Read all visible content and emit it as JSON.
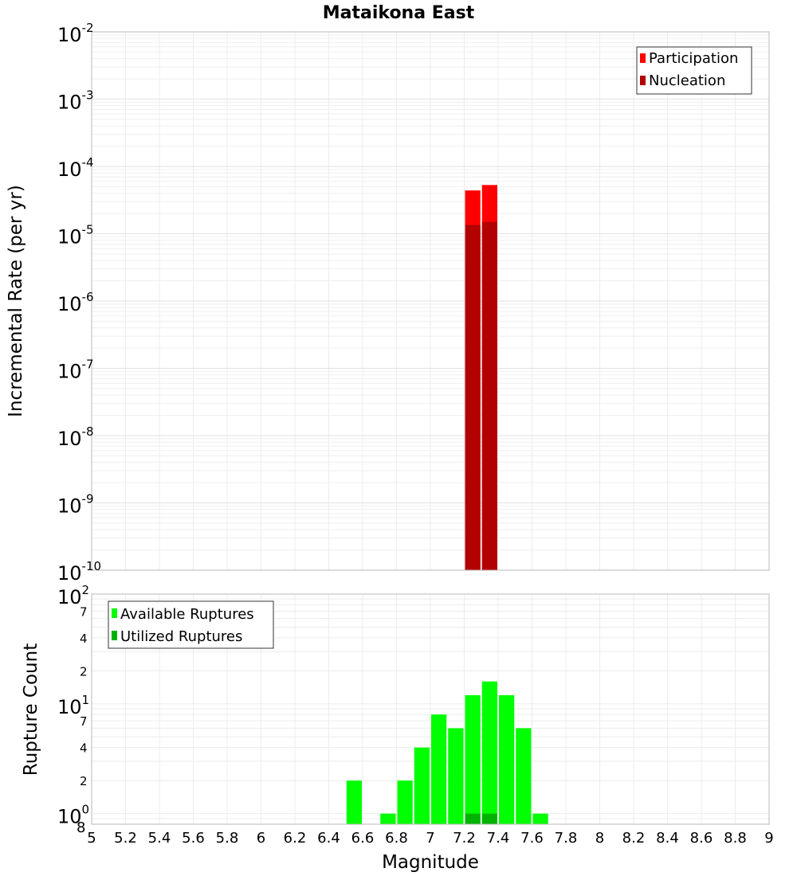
{
  "title": "Mataikona East",
  "chart_data": [
    {
      "type": "bar",
      "title": "Mataikona East",
      "ylabel": "Incremental Rate (per yr)",
      "xlabel": "Magnitude",
      "yscale": "log",
      "ylim": [
        1e-10,
        0.01
      ],
      "xlim": [
        5,
        9
      ],
      "grid": true,
      "legend_position": "top-right",
      "y_tick_labels": [
        {
          "base": "10",
          "exp": "-10"
        },
        {
          "base": "10",
          "exp": "-9"
        },
        {
          "base": "10",
          "exp": "-8"
        },
        {
          "base": "10",
          "exp": "-7"
        },
        {
          "base": "10",
          "exp": "-6"
        },
        {
          "base": "10",
          "exp": "-5"
        },
        {
          "base": "10",
          "exp": "-4"
        },
        {
          "base": "10",
          "exp": "-3"
        },
        {
          "base": "10",
          "exp": "-2"
        }
      ],
      "series": [
        {
          "name": "Participation",
          "color": "#ff0000",
          "x": [
            7.25,
            7.35
          ],
          "values": [
            4.4e-05,
            5.3e-05
          ]
        },
        {
          "name": "Nucleation",
          "color": "#b30000",
          "x": [
            7.25,
            7.35
          ],
          "values": [
            1.35e-05,
            1.5e-05
          ]
        }
      ]
    },
    {
      "type": "bar",
      "ylabel": "Rupture Count",
      "xlabel": "Magnitude",
      "yscale": "log",
      "ylim": [
        0.8,
        100
      ],
      "xlim": [
        5,
        9
      ],
      "grid": true,
      "legend_position": "top-left",
      "x_ticks": [
        "5",
        "5.2",
        "5.4",
        "5.6",
        "5.8",
        "6",
        "6.2",
        "6.4",
        "6.6",
        "6.8",
        "7",
        "7.2",
        "7.4",
        "7.6",
        "7.8",
        "8",
        "8.2",
        "8.4",
        "8.6",
        "8.8",
        "9"
      ],
      "y_tick_labels": [
        {
          "base": "10",
          "exp": "0",
          "minor": "8"
        },
        {
          "minor": "2"
        },
        {
          "minor": "4"
        },
        {
          "minor": "7"
        },
        {
          "base": "10",
          "exp": "1"
        },
        {
          "minor": "2"
        },
        {
          "minor": "4"
        },
        {
          "minor": "7"
        },
        {
          "base": "10",
          "exp": "2"
        }
      ],
      "series": [
        {
          "name": "Available Ruptures",
          "color": "#00ff00",
          "x": [
            6.55,
            6.75,
            6.85,
            6.95,
            7.05,
            7.15,
            7.25,
            7.35,
            7.45,
            7.55,
            7.65
          ],
          "values": [
            2,
            1,
            2,
            4,
            8,
            6,
            12,
            16,
            12,
            6,
            1
          ]
        },
        {
          "name": "Utilized Ruptures",
          "color": "#00b300",
          "x": [
            7.25,
            7.35
          ],
          "values": [
            1,
            1
          ]
        }
      ]
    }
  ]
}
